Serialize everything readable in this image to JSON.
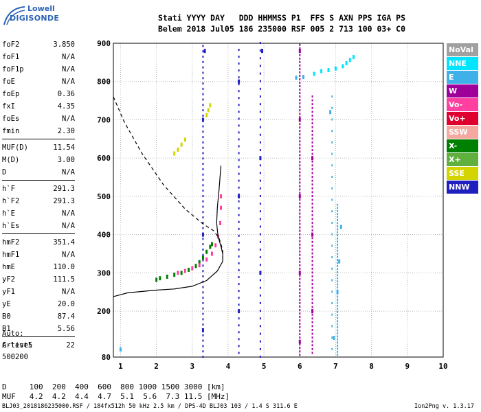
{
  "logo": {
    "line1": "Lowell",
    "line2": "DIGISONDE"
  },
  "header": {
    "line1": "Stati YYYY DAY   DDD HHMMSS P1  FFS S AXN PPS IGA PS",
    "line2": "Belem 2018 Jul05 186 235000 RSF 005 2 713 100 03+ C0"
  },
  "params": [
    {
      "label": "foF2",
      "value": "3.850"
    },
    {
      "label": "foF1",
      "value": "N/A"
    },
    {
      "label": "foF1p",
      "value": "N/A"
    },
    {
      "label": "foE",
      "value": "N/A"
    },
    {
      "label": "foEp",
      "value": "0.36"
    },
    {
      "label": "fxI",
      "value": "4.35"
    },
    {
      "label": "foEs",
      "value": "N/A"
    },
    {
      "label": "fmin",
      "value": "2.30"
    },
    {
      "label": "MUF(D)",
      "value": "11.54",
      "sep": true
    },
    {
      "label": "M(D)",
      "value": "3.00"
    },
    {
      "label": "D",
      "value": "N/A"
    },
    {
      "label": "h`F",
      "value": "291.3",
      "sep": true
    },
    {
      "label": "h`F2",
      "value": "291.3"
    },
    {
      "label": "h`E",
      "value": "N/A"
    },
    {
      "label": "h`Es",
      "value": "N/A"
    },
    {
      "label": "hmF2",
      "value": "351.4",
      "sep": true
    },
    {
      "label": "hmF1",
      "value": "N/A"
    },
    {
      "label": "hmE",
      "value": "110.0"
    },
    {
      "label": "yF2",
      "value": "111.5"
    },
    {
      "label": "yF1",
      "value": "N/A"
    },
    {
      "label": "yE",
      "value": "20.0"
    },
    {
      "label": "B0",
      "value": "87.4"
    },
    {
      "label": "B1",
      "value": "5.56"
    },
    {
      "label": "C-level",
      "value": "22",
      "sep": true
    }
  ],
  "auto": {
    "line1": "Auto:",
    "line2": "Artist5",
    "line3": "500200"
  },
  "bottom_table": {
    "d_row": "D     100  200  400  600  800 1000 1500 3000 [km]",
    "muf_row": "MUF   4.2  4.2  4.4  4.7  5.1  5.6  7.3 11.5 [MHz]"
  },
  "footer": {
    "left": "BLJ03_2018186235000.RSF / 184fx512h 50 kHz 2.5 km / DPS-4D BLJ03 103 / 1.4 S 311.6 E",
    "right": "Ion2Png v. 1.3.17"
  },
  "legend": [
    {
      "label": "NoVal",
      "color": "#a0a0a0"
    },
    {
      "label": "NNE",
      "color": "#00e5ff"
    },
    {
      "label": "E",
      "color": "#3fb0e8"
    },
    {
      "label": "W",
      "color": "#a0009a"
    },
    {
      "label": "Vo-",
      "color": "#ff40a0"
    },
    {
      "label": "Vo+",
      "color": "#e00030"
    },
    {
      "label": "SSW",
      "color": "#f4a8a0"
    },
    {
      "label": "X-",
      "color": "#008000"
    },
    {
      "label": "X+",
      "color": "#60b040"
    },
    {
      "label": "SSE",
      "color": "#d4d400"
    },
    {
      "label": "NNW",
      "color": "#2020c0"
    }
  ],
  "chart_data": {
    "type": "scatter",
    "xlabel": "",
    "ylabel": "",
    "xlim": [
      0.8,
      10
    ],
    "ylim": [
      80,
      900
    ],
    "x_ticks": [
      1,
      2,
      3,
      4,
      5,
      6,
      7,
      8,
      9,
      10
    ],
    "y_ticks": [
      80,
      200,
      300,
      400,
      500,
      600,
      700,
      800,
      900
    ],
    "grid": true,
    "series": [
      {
        "name": "X-",
        "color": "#008000",
        "points": [
          [
            2.0,
            282
          ],
          [
            2.1,
            286
          ],
          [
            2.3,
            290
          ],
          [
            2.5,
            295
          ],
          [
            2.7,
            300
          ],
          [
            2.9,
            308
          ],
          [
            3.1,
            318
          ],
          [
            3.2,
            328
          ],
          [
            3.3,
            340
          ],
          [
            3.4,
            355
          ],
          [
            3.5,
            368
          ],
          [
            3.55,
            375
          ]
        ]
      },
      {
        "name": "Vo-",
        "color": "#ff40a0",
        "points": [
          [
            2.6,
            300
          ],
          [
            2.8,
            305
          ],
          [
            3.0,
            312
          ],
          [
            3.2,
            320
          ],
          [
            3.4,
            335
          ],
          [
            3.55,
            350
          ],
          [
            3.65,
            372
          ],
          [
            3.72,
            395
          ],
          [
            3.78,
            430
          ],
          [
            3.8,
            470
          ],
          [
            3.8,
            500
          ]
        ]
      },
      {
        "name": "SSE",
        "color": "#d4d400",
        "points": [
          [
            2.5,
            612
          ],
          [
            2.6,
            622
          ],
          [
            2.7,
            635
          ],
          [
            2.8,
            648
          ],
          [
            3.4,
            712
          ],
          [
            3.45,
            725
          ],
          [
            3.5,
            738
          ]
        ]
      },
      {
        "name": "NNE",
        "color": "#00e5ff",
        "points": [
          [
            6.4,
            820
          ],
          [
            6.6,
            827
          ],
          [
            6.8,
            830
          ],
          [
            7.0,
            834
          ],
          [
            7.2,
            840
          ],
          [
            7.3,
            848
          ],
          [
            7.4,
            856
          ],
          [
            7.5,
            864
          ]
        ]
      },
      {
        "name": "W",
        "color": "#a0009a",
        "points": [
          [
            6.0,
            120
          ],
          [
            6.0,
            300
          ],
          [
            6.0,
            500
          ],
          [
            6.0,
            700
          ],
          [
            6.0,
            880
          ],
          [
            6.35,
            200
          ],
          [
            6.35,
            400
          ],
          [
            6.35,
            600
          ]
        ]
      },
      {
        "name": "E",
        "color": "#3fb0e8",
        "points": [
          [
            6.95,
            130
          ],
          [
            7.05,
            250
          ],
          [
            7.1,
            330
          ],
          [
            7.15,
            420
          ],
          [
            6.85,
            720
          ],
          [
            1.0,
            100
          ],
          [
            5.9,
            810
          ],
          [
            6.1,
            812
          ]
        ]
      },
      {
        "name": "NNW",
        "color": "#2020c0",
        "points": [
          [
            3.3,
            150
          ],
          [
            3.3,
            400
          ],
          [
            3.3,
            700
          ],
          [
            3.35,
            880
          ],
          [
            4.3,
            200
          ],
          [
            4.3,
            500
          ],
          [
            4.3,
            800
          ],
          [
            4.9,
            300
          ],
          [
            4.9,
            600
          ],
          [
            4.95,
            880
          ]
        ]
      }
    ],
    "curves": [
      {
        "style": "solid",
        "points": [
          [
            0.8,
            238
          ],
          [
            1.2,
            248
          ],
          [
            2.0,
            255
          ],
          [
            2.5,
            258
          ],
          [
            3.0,
            265
          ],
          [
            3.4,
            280
          ],
          [
            3.7,
            305
          ],
          [
            3.85,
            330
          ],
          [
            3.85,
            350
          ],
          [
            3.8,
            370
          ],
          [
            3.72,
            395
          ],
          [
            3.68,
            430
          ],
          [
            3.7,
            470
          ],
          [
            3.75,
            520
          ],
          [
            3.8,
            580
          ]
        ]
      },
      {
        "style": "dashed",
        "points": [
          [
            0.8,
            760
          ],
          [
            1.1,
            695
          ],
          [
            1.6,
            612
          ],
          [
            2.2,
            530
          ],
          [
            2.8,
            467
          ],
          [
            3.3,
            428
          ],
          [
            3.6,
            410
          ],
          [
            3.75,
            390
          ],
          [
            3.85,
            360
          ],
          [
            3.85,
            330
          ]
        ]
      }
    ]
  }
}
